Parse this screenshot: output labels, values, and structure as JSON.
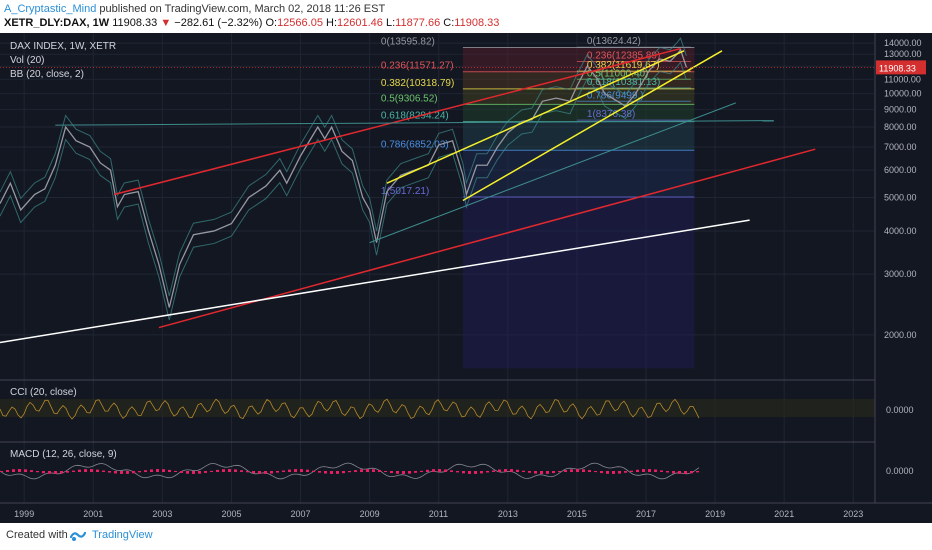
{
  "header": {
    "author": "A_Cryptastic_Mind",
    "published": "published on TradingView.com, March 02, 2018 11:26 EST",
    "symbol": "XETR_DLY:DAX, 1W",
    "last": "11908.33",
    "arrow": "▼",
    "change": "−282.61 (−2.32%)",
    "o_label": "O:",
    "o_val": "12566.05",
    "h_label": "H:",
    "h_val": "12601.46",
    "l_label": "L:",
    "l_val": "11877.66",
    "c_label": "C:",
    "c_val": "11908.33"
  },
  "main_legend": {
    "title": "DAX INDEX, 1W, XETR",
    "vol": "Vol (20)",
    "bb": "BB (20, close, 2)"
  },
  "cci_legend": "CCI (20, close)",
  "macd_legend": "MACD (12, 26, close, 9)",
  "footer": {
    "created": "Created with",
    "brand": "TradingView"
  },
  "colors": {
    "background": "#131722",
    "price": "#9598a1",
    "red_channel": "#e0282e",
    "yellow_channel": "#f5f02a",
    "white_channel": "#ffffff",
    "bollinger": "#3d8c8c",
    "cci": "#b5892b",
    "macd_hist": "#e91e63",
    "last_price": "#d32f2f"
  },
  "chart_data": {
    "type": "line",
    "title": "DAX INDEX, 1W, XETR",
    "xlim": [
      1998.3,
      2023.6
    ],
    "ylim": [
      1500,
      14200
    ],
    "log_scale": true,
    "x_ticks": [
      "1999",
      "2001",
      "2003",
      "2005",
      "2007",
      "2009",
      "2011",
      "2013",
      "2015",
      "2017",
      "2019",
      "2021",
      "2023"
    ],
    "y_ticks": [
      "14000.00",
      "13000.00",
      "12000.00",
      "11000.00",
      "10000.00",
      "9000.00",
      "8000.00",
      "7000.00",
      "6000.00",
      "5000.00",
      "4000.00",
      "3000.00",
      "2000.00"
    ],
    "last_price": 11908.33,
    "last_price_label": "11908.33",
    "series": [
      {
        "name": "DAX INDEX",
        "x": [
          1998.3,
          1998.6,
          1998.9,
          1999.3,
          1999.6,
          1999.9,
          2000.2,
          2000.5,
          2000.9,
          2001.2,
          2001.5,
          2001.7,
          2001.9,
          2002.3,
          2002.6,
          2002.9,
          2003.2,
          2003.5,
          2003.9,
          2004.5,
          2005.0,
          2005.5,
          2006.0,
          2006.4,
          2006.6,
          2007.0,
          2007.4,
          2007.5,
          2007.7,
          2007.9,
          2008.2,
          2008.5,
          2008.8,
          2009.0,
          2009.2,
          2009.5,
          2009.9,
          2010.3,
          2010.7,
          2011.0,
          2011.4,
          2011.7,
          2011.8,
          2012.1,
          2012.4,
          2012.7,
          2013.0,
          2013.4,
          2013.7,
          2014.0,
          2014.4,
          2014.8,
          2015.0,
          2015.3,
          2015.6,
          2015.8,
          2016.1,
          2016.4,
          2016.7,
          2016.9,
          2017.1,
          2017.4,
          2017.7,
          2017.9,
          2018.0,
          2018.17
        ],
        "y": [
          4800,
          5500,
          4600,
          5100,
          5300,
          6200,
          8000,
          7300,
          7000,
          6300,
          6000,
          4700,
          5100,
          5200,
          4000,
          3200,
          2400,
          3200,
          3900,
          4000,
          4200,
          5000,
          5400,
          6000,
          5500,
          6600,
          7700,
          8000,
          7400,
          8000,
          6800,
          6400,
          5000,
          4600,
          3700,
          5200,
          5800,
          6000,
          6200,
          7100,
          7300,
          5800,
          5100,
          6200,
          6200,
          7000,
          7700,
          8300,
          8400,
          9500,
          9700,
          9500,
          10500,
          12000,
          11000,
          10000,
          9600,
          9200,
          10000,
          10800,
          11700,
          12600,
          12400,
          13000,
          13400,
          11908
        ]
      }
    ],
    "annotations": {
      "fib_retracement": [
        {
          "label": "0(13595.82)",
          "value": 13595.82
        },
        {
          "label": "0.236(11571.27)",
          "value": 11571.27
        },
        {
          "label": "0.382(10318.79)",
          "value": 10318.79
        },
        {
          "label": "0.5(9306.52)",
          "value": 9306.52
        },
        {
          "label": "0.618(8294.24)",
          "value": 8294.24
        },
        {
          "label": "0.786(6852.03)",
          "value": 6852.03
        },
        {
          "label": "1(5017.21)",
          "value": 5017.21
        }
      ],
      "fib_retracement_2": [
        {
          "label": "0(13624.42)",
          "value": 13624.42
        },
        {
          "label": "0.236(12385.89)",
          "value": 12385.89
        },
        {
          "label": "0.382(11619.67)",
          "value": 11619.67
        },
        {
          "label": "0.5(11000.40)",
          "value": 11000.4
        },
        {
          "label": "0.618(10381.13)",
          "value": 10381.13
        },
        {
          "label": "0.786(9499.)",
          "value": 9499
        },
        {
          "label": "1(8376.38)",
          "value": 8376.38
        }
      ],
      "trend_lines": [
        {
          "color": "red",
          "from": [
            2001.6,
            5100
          ],
          "to": [
            2018.0,
            13500
          ]
        },
        {
          "color": "red",
          "from": [
            2002.9,
            2100
          ],
          "to": [
            2021.9,
            6900
          ]
        },
        {
          "color": "white",
          "from": [
            1998.3,
            1900
          ],
          "to": [
            2020.0,
            4300
          ]
        },
        {
          "color": "teal",
          "from": [
            1999.9,
            8100
          ],
          "to": [
            2020.7,
            8350
          ]
        },
        {
          "color": "yellow",
          "from": [
            2009.5,
            5500
          ],
          "to": [
            2018.1,
            13300
          ]
        },
        {
          "color": "yellow",
          "from": [
            2011.7,
            4900
          ],
          "to": [
            2019.2,
            13300
          ]
        },
        {
          "color": "teal",
          "from": [
            2009.0,
            3700
          ],
          "to": [
            2019.6,
            9400
          ]
        }
      ]
    }
  }
}
